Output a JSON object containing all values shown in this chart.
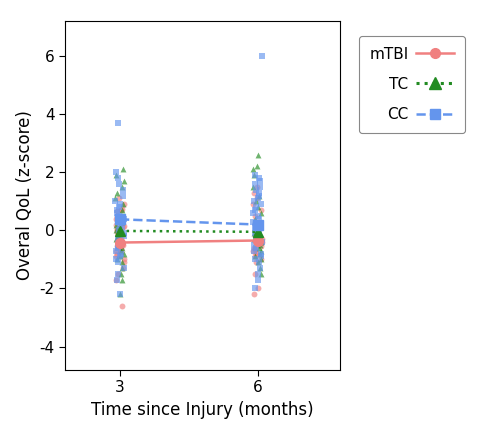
{
  "title": "",
  "xlabel": "Time since Injury (months)",
  "ylabel": "Overal QoL (z-score)",
  "xlim": [
    1.8,
    7.8
  ],
  "ylim": [
    -4.8,
    7.2
  ],
  "yticks": [
    -4,
    -2,
    0,
    2,
    4,
    6
  ],
  "xticks": [
    3,
    6
  ],
  "groups": {
    "mTBI": {
      "color": "#F08080",
      "marker": "o",
      "linestyle": "-",
      "mean_3": -0.42,
      "mean_6": -0.35,
      "data_3": [
        1.1,
        0.9,
        0.75,
        0.7,
        0.65,
        0.5,
        0.4,
        0.35,
        0.3,
        0.25,
        0.2,
        0.15,
        0.1,
        0.05,
        0.0,
        -0.05,
        -0.1,
        -0.15,
        -0.2,
        -0.25,
        -0.3,
        -0.35,
        -0.4,
        -0.42,
        -0.45,
        -0.5,
        -0.55,
        -0.6,
        -0.65,
        -0.7,
        -0.75,
        -0.8,
        -0.9,
        -1.0,
        -1.1,
        -1.3,
        -1.5,
        -1.7,
        -2.6
      ],
      "data_6": [
        1.5,
        1.3,
        1.1,
        0.9,
        0.7,
        0.5,
        0.3,
        0.1,
        0.0,
        -0.1,
        -0.2,
        -0.3,
        -0.35,
        -0.4,
        -0.45,
        -0.5,
        -0.55,
        -0.6,
        -0.65,
        -0.7,
        -0.75,
        -0.8,
        -0.9,
        -1.0,
        -1.1,
        -1.5,
        -2.0,
        -2.2
      ]
    },
    "TC": {
      "color": "#228B22",
      "marker": "^",
      "linestyle": ":",
      "mean_3": -0.02,
      "mean_6": -0.05,
      "data_3": [
        2.1,
        1.9,
        1.7,
        1.5,
        1.3,
        1.1,
        0.9,
        0.7,
        0.5,
        0.3,
        0.2,
        0.1,
        0.0,
        -0.05,
        -0.1,
        -0.2,
        -0.3,
        -0.4,
        -0.5,
        -0.6,
        -0.7,
        -0.8,
        -0.9,
        -1.0,
        -1.1,
        -1.3,
        -1.5,
        -1.7,
        -2.2
      ],
      "data_6": [
        2.6,
        2.2,
        2.1,
        1.9,
        1.5,
        1.2,
        1.0,
        0.8,
        0.6,
        0.4,
        0.2,
        0.1,
        0.0,
        -0.1,
        -0.2,
        -0.3,
        -0.4,
        -0.5,
        -0.6,
        -0.7,
        -0.8,
        -0.9,
        -1.0,
        -1.1,
        -1.3,
        -1.5
      ]
    },
    "CC": {
      "color": "#6495ED",
      "marker": "s",
      "linestyle": "--",
      "mean_3": 0.38,
      "mean_6": 0.2,
      "data_3": [
        3.7,
        2.0,
        1.8,
        1.6,
        1.4,
        1.2,
        1.0,
        0.9,
        0.8,
        0.7,
        0.6,
        0.5,
        0.4,
        0.3,
        0.2,
        0.1,
        0.0,
        -0.1,
        -0.2,
        -0.3,
        -0.4,
        -0.5,
        -0.6,
        -0.7,
        -0.8,
        -0.9,
        -1.0,
        -1.1,
        -1.3,
        -1.5,
        -1.7,
        -2.2
      ],
      "data_6": [
        6.0,
        1.9,
        1.8,
        1.7,
        1.6,
        1.5,
        1.4,
        1.3,
        1.2,
        1.1,
        1.0,
        0.9,
        0.8,
        0.7,
        0.6,
        0.5,
        0.4,
        0.3,
        0.2,
        0.1,
        0.0,
        -0.1,
        -0.2,
        -0.3,
        -0.4,
        -0.5,
        -0.6,
        -0.7,
        -0.8,
        -0.9,
        -1.0,
        -1.1,
        -1.3,
        -1.5,
        -1.7,
        -2.0
      ]
    }
  },
  "jitter_seed": 42,
  "jitter_amount": 0.1,
  "point_alpha": 0.65,
  "point_size": 18,
  "fig_width": 5.0,
  "fig_height": 4.25,
  "dpi": 100
}
